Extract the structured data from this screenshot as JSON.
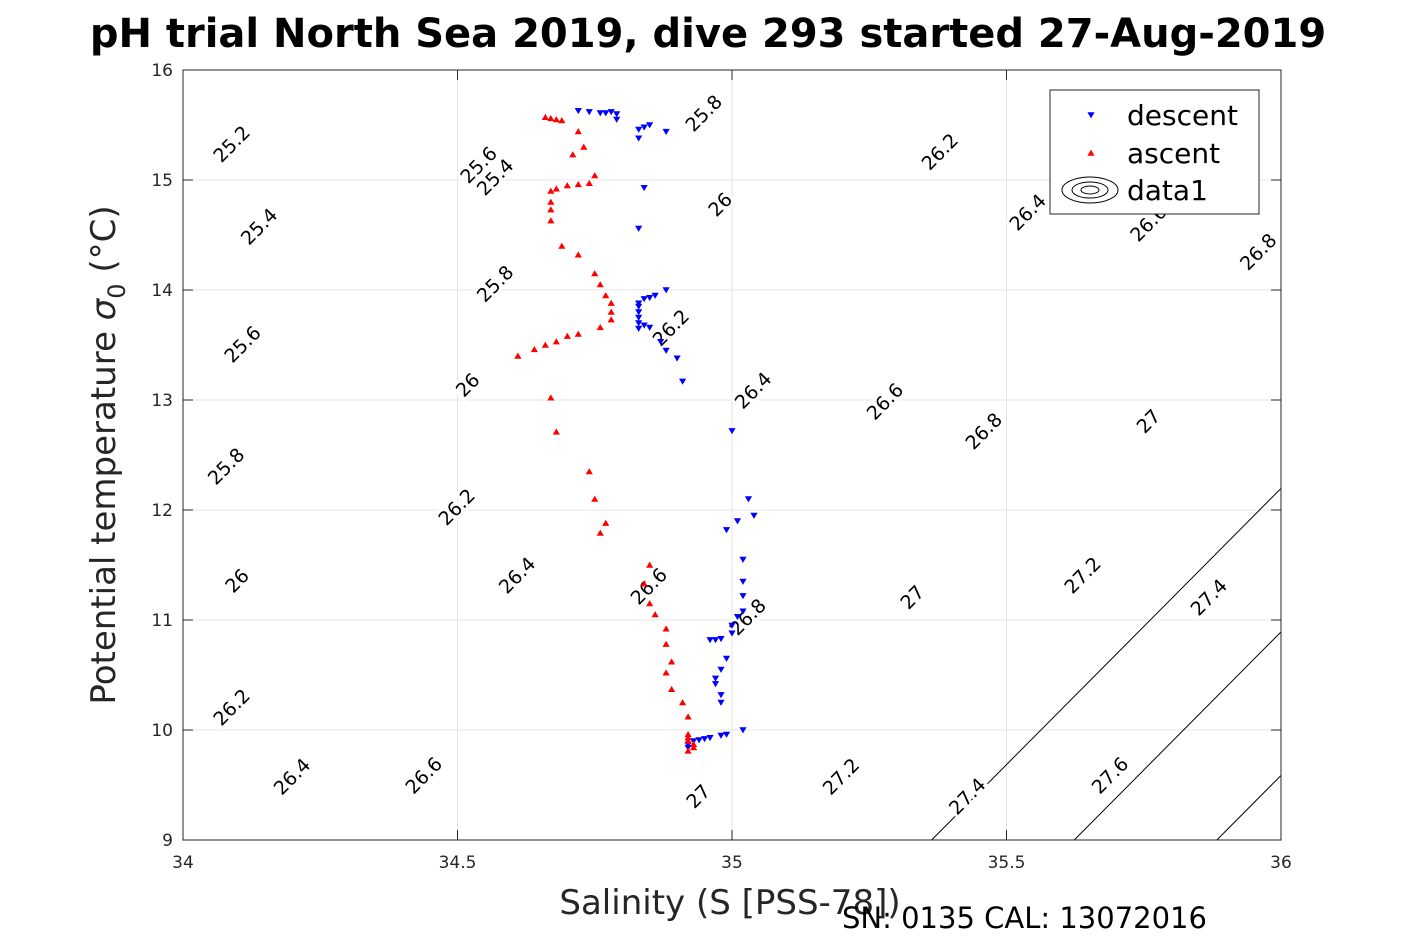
{
  "chart_data": {
    "type": "scatter",
    "title": "pH trial North Sea 2019, dive 293 started 27-Aug-2019",
    "xlabel": "Salinity (S [PSS-78])",
    "ylabel": "Potential temperature σ0 (°C)",
    "xlim": [
      34,
      36
    ],
    "ylim": [
      9,
      16
    ],
    "xticks": [
      "34",
      "34.5",
      "35",
      "35.5",
      "36"
    ],
    "yticks": [
      "9",
      "10",
      "11",
      "12",
      "13",
      "14",
      "15",
      "16"
    ],
    "grid": true,
    "legend_position": "top-right",
    "legend": [
      "descent",
      "ascent",
      "data1"
    ],
    "contour_levels": [
      25.2,
      25.4,
      25.6,
      25.8,
      26,
      26.2,
      26.4,
      26.6,
      26.8,
      27,
      27.2,
      27.4,
      27.6
    ],
    "contour_labels": [
      {
        "text": "25.2",
        "s": 34.09,
        "t": 15.32
      },
      {
        "text": "25.4",
        "s": 34.14,
        "t": 14.57
      },
      {
        "text": "25.6",
        "s": 34.11,
        "t": 13.5
      },
      {
        "text": "25.8",
        "s": 34.08,
        "t": 12.39
      },
      {
        "text": "26",
        "s": 34.1,
        "t": 11.35
      },
      {
        "text": "26.2",
        "s": 34.09,
        "t": 10.2
      },
      {
        "text": "26.4",
        "s": 34.2,
        "t": 9.57
      },
      {
        "text": "26.6",
        "s": 34.44,
        "t": 9.58
      },
      {
        "text": "27",
        "s": 34.94,
        "t": 9.39
      },
      {
        "text": "27.2",
        "s": 35.2,
        "t": 9.57
      },
      {
        "text": "27.4",
        "s": 35.43,
        "t": 9.39
      },
      {
        "text": "27.6",
        "s": 35.69,
        "t": 9.58
      },
      {
        "text": "25.4",
        "s": 34.57,
        "t": 15.02
      },
      {
        "text": "25.8",
        "s": 34.57,
        "t": 14.05
      },
      {
        "text": "26",
        "s": 34.52,
        "t": 13.13
      },
      {
        "text": "26.2",
        "s": 34.5,
        "t": 12.02
      },
      {
        "text": "26.4",
        "s": 34.61,
        "t": 11.4
      },
      {
        "text": "26.6",
        "s": 34.85,
        "t": 11.3
      },
      {
        "text": "26.8",
        "s": 35.03,
        "t": 11.02
      },
      {
        "text": "27",
        "s": 35.33,
        "t": 11.2
      },
      {
        "text": "27.2",
        "s": 35.64,
        "t": 11.4
      },
      {
        "text": "27.4",
        "s": 35.87,
        "t": 11.2
      },
      {
        "text": "25.6",
        "s": 34.54,
        "t": 15.13
      },
      {
        "text": "25.8",
        "s": 34.95,
        "t": 15.6
      },
      {
        "text": "26",
        "s": 34.98,
        "t": 14.77
      },
      {
        "text": "26.2",
        "s": 34.89,
        "t": 13.65
      },
      {
        "text": "26.4",
        "s": 35.04,
        "t": 13.08
      },
      {
        "text": "26.6",
        "s": 35.28,
        "t": 12.98
      },
      {
        "text": "26.8",
        "s": 35.46,
        "t": 12.71
      },
      {
        "text": "27",
        "s": 35.76,
        "t": 12.8
      },
      {
        "text": "26.2",
        "s": 35.38,
        "t": 15.25
      },
      {
        "text": "26.4",
        "s": 35.54,
        "t": 14.7
      },
      {
        "text": "26.6",
        "s": 35.76,
        "t": 14.6
      },
      {
        "text": "26.8",
        "s": 35.96,
        "t": 14.34
      }
    ],
    "series": [
      {
        "name": "descent",
        "marker": "triangle-down",
        "color": "#0000ff",
        "points": [
          [
            34.72,
            15.63
          ],
          [
            34.74,
            15.62
          ],
          [
            34.76,
            15.61
          ],
          [
            34.77,
            15.61
          ],
          [
            34.78,
            15.62
          ],
          [
            34.79,
            15.6
          ],
          [
            34.79,
            15.55
          ],
          [
            34.83,
            15.46
          ],
          [
            34.84,
            15.48
          ],
          [
            34.85,
            15.5
          ],
          [
            34.88,
            15.44
          ],
          [
            34.83,
            15.38
          ],
          [
            34.84,
            14.93
          ],
          [
            34.83,
            14.56
          ],
          [
            34.88,
            14.0
          ],
          [
            34.86,
            13.95
          ],
          [
            34.85,
            13.93
          ],
          [
            34.84,
            13.92
          ],
          [
            34.83,
            13.88
          ],
          [
            34.83,
            13.85
          ],
          [
            34.83,
            13.8
          ],
          [
            34.83,
            13.75
          ],
          [
            34.83,
            13.7
          ],
          [
            34.84,
            13.68
          ],
          [
            34.85,
            13.66
          ],
          [
            34.83,
            13.65
          ],
          [
            34.87,
            13.53
          ],
          [
            34.88,
            13.45
          ],
          [
            34.9,
            13.38
          ],
          [
            34.91,
            13.17
          ],
          [
            35.0,
            12.72
          ],
          [
            35.03,
            12.1
          ],
          [
            35.04,
            11.95
          ],
          [
            35.01,
            11.9
          ],
          [
            34.99,
            11.82
          ],
          [
            35.02,
            11.55
          ],
          [
            35.02,
            11.35
          ],
          [
            35.02,
            11.22
          ],
          [
            35.02,
            11.08
          ],
          [
            35.01,
            11.03
          ],
          [
            35.0,
            10.95
          ],
          [
            35.0,
            10.88
          ],
          [
            34.98,
            10.83
          ],
          [
            34.97,
            10.82
          ],
          [
            34.96,
            10.82
          ],
          [
            34.99,
            10.65
          ],
          [
            34.98,
            10.55
          ],
          [
            34.97,
            10.47
          ],
          [
            34.97,
            10.42
          ],
          [
            34.98,
            10.32
          ],
          [
            34.98,
            10.25
          ],
          [
            35.02,
            10.0
          ],
          [
            34.99,
            9.96
          ],
          [
            34.98,
            9.95
          ],
          [
            34.96,
            9.93
          ],
          [
            34.95,
            9.92
          ],
          [
            34.94,
            9.91
          ],
          [
            34.93,
            9.9
          ],
          [
            34.92,
            9.87
          ],
          [
            34.92,
            9.84
          ]
        ]
      },
      {
        "name": "ascent",
        "marker": "triangle-up",
        "color": "#ff0000",
        "points": [
          [
            34.66,
            15.57
          ],
          [
            34.67,
            15.56
          ],
          [
            34.68,
            15.55
          ],
          [
            34.69,
            15.54
          ],
          [
            34.72,
            15.44
          ],
          [
            34.73,
            15.3
          ],
          [
            34.71,
            15.23
          ],
          [
            34.75,
            15.04
          ],
          [
            34.74,
            14.97
          ],
          [
            34.72,
            14.96
          ],
          [
            34.7,
            14.95
          ],
          [
            34.68,
            14.92
          ],
          [
            34.67,
            14.9
          ],
          [
            34.67,
            14.8
          ],
          [
            34.67,
            14.73
          ],
          [
            34.67,
            14.63
          ],
          [
            34.69,
            14.4
          ],
          [
            34.72,
            14.32
          ],
          [
            34.75,
            14.15
          ],
          [
            34.76,
            14.05
          ],
          [
            34.77,
            13.95
          ],
          [
            34.78,
            13.88
          ],
          [
            34.78,
            13.8
          ],
          [
            34.78,
            13.73
          ],
          [
            34.76,
            13.66
          ],
          [
            34.72,
            13.6
          ],
          [
            34.7,
            13.58
          ],
          [
            34.68,
            13.53
          ],
          [
            34.66,
            13.5
          ],
          [
            34.64,
            13.46
          ],
          [
            34.61,
            13.4
          ],
          [
            34.67,
            13.02
          ],
          [
            34.68,
            12.71
          ],
          [
            34.74,
            12.35
          ],
          [
            34.75,
            12.1
          ],
          [
            34.77,
            11.88
          ],
          [
            34.76,
            11.79
          ],
          [
            34.85,
            11.5
          ],
          [
            34.84,
            11.33
          ],
          [
            34.85,
            11.15
          ],
          [
            34.86,
            11.05
          ],
          [
            34.88,
            10.92
          ],
          [
            34.88,
            10.78
          ],
          [
            34.89,
            10.62
          ],
          [
            34.88,
            10.52
          ],
          [
            34.89,
            10.37
          ],
          [
            34.91,
            10.25
          ],
          [
            34.92,
            10.12
          ],
          [
            34.92,
            9.96
          ],
          [
            34.92,
            9.93
          ],
          [
            34.92,
            9.9
          ],
          [
            34.93,
            9.87
          ],
          [
            34.93,
            9.84
          ],
          [
            34.92,
            9.81
          ]
        ]
      },
      {
        "name": "data1",
        "marker": "contour"
      }
    ]
  },
  "footer_text": "SN: 0135  CAL: 13072016"
}
